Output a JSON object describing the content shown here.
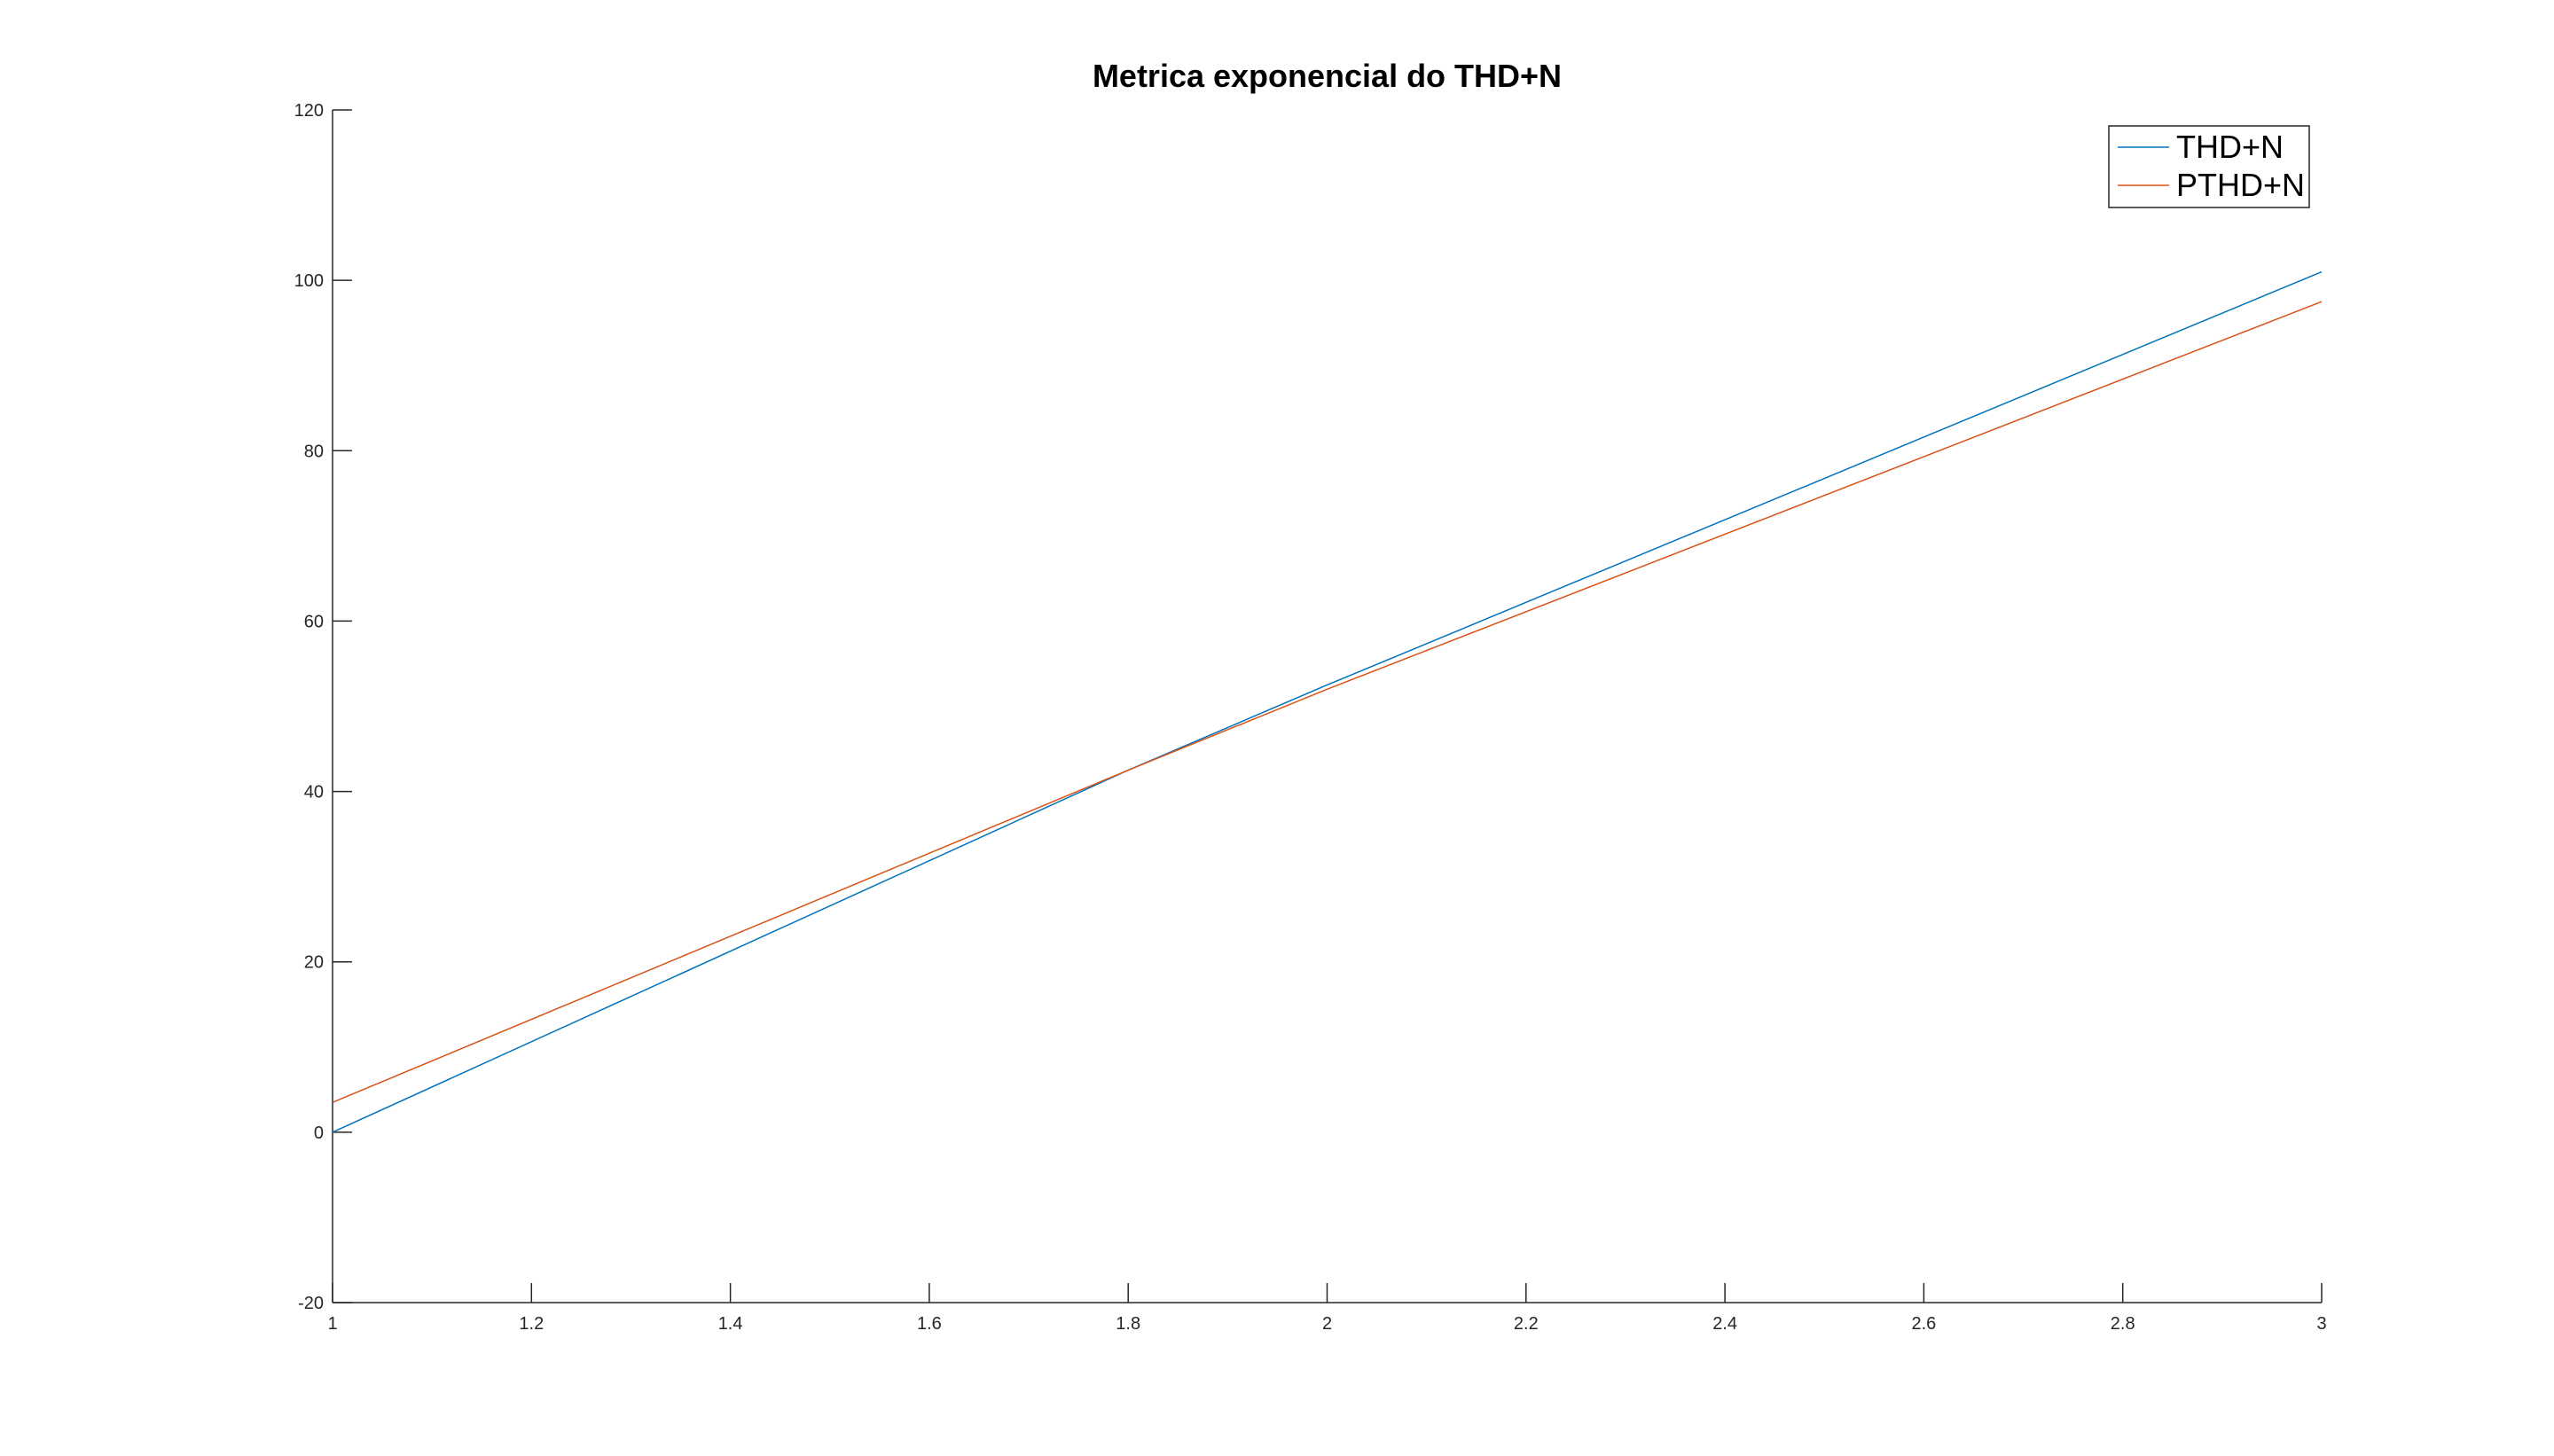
{
  "chart_data": {
    "type": "line",
    "title": "Metrica exponencial do THD+N",
    "xlabel": "",
    "ylabel": "",
    "xlim": [
      1,
      3
    ],
    "ylim": [
      -20,
      120
    ],
    "x_ticks": [
      1,
      1.2,
      1.4,
      1.6,
      1.8,
      2,
      2.2,
      2.4,
      2.6,
      2.8,
      3
    ],
    "x_tick_labels": [
      "1",
      "1.2",
      "1.4",
      "1.6",
      "1.8",
      "2",
      "2.2",
      "2.4",
      "2.6",
      "2.8",
      "3"
    ],
    "y_ticks": [
      -20,
      0,
      20,
      40,
      60,
      80,
      100,
      120
    ],
    "y_tick_labels": [
      "-20",
      "0",
      "20",
      "40",
      "60",
      "80",
      "100",
      "120"
    ],
    "grid": false,
    "legend_position": "top-right",
    "series": [
      {
        "name": "THD+N",
        "color": "#0072BD",
        "x": [
          1,
          1.8,
          2,
          3
        ],
        "y": [
          0,
          42.5,
          52.5,
          101
        ]
      },
      {
        "name": "PTHD+N",
        "color": "#D95319",
        "x": [
          1,
          1.8,
          2,
          3
        ],
        "y": [
          3.5,
          42.5,
          52,
          97.5
        ]
      }
    ]
  }
}
